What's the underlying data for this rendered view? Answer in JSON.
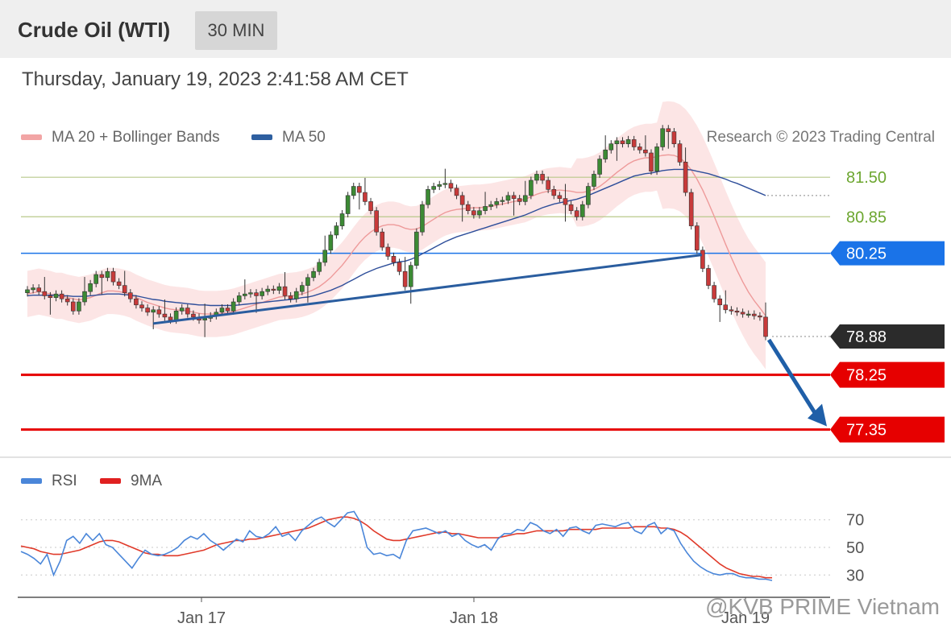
{
  "header": {
    "title": "Crude Oil (WTI)",
    "timeframe": "30 MIN"
  },
  "timestamp": "Thursday, January 19, 2023 2:41:58 AM CET",
  "legend": {
    "ma20": "MA 20 + Bollinger Bands",
    "ma50": "MA 50",
    "credit": "Research © 2023 Trading Central"
  },
  "rsi_legend": {
    "rsi": "RSI",
    "ma": "9MA"
  },
  "watermark": "@KVB PRIME Vietnam",
  "colors": {
    "up_candle": "#3c8a34",
    "down_candle": "#c83a3a",
    "bollinger": "#fbe1e1",
    "ma20": "#ee9a9a",
    "ma50": "#2e4e9a",
    "trendline": "#2a5d9f",
    "pivot": "#1a73e8",
    "support": "#e60000",
    "resistance": "#6ca62f",
    "last_price": "#2b2b2b",
    "rsi_line": "#4a86d9",
    "rsi_ma": "#e03a2a"
  },
  "chart_data": [
    {
      "type": "candlestick",
      "title": "Crude Oil (WTI)",
      "timeframe": "30 MIN",
      "x_ticks": [
        "Jan 17",
        "Jan 18",
        "Jan 19"
      ],
      "y_range": [
        77.0,
        81.9
      ],
      "levels": [
        {
          "value": 81.5,
          "label": "81.50",
          "kind": "resistance"
        },
        {
          "value": 80.85,
          "label": "80.85",
          "kind": "resistance"
        },
        {
          "value": 80.25,
          "label": "80.25",
          "kind": "pivot"
        },
        {
          "value": 78.88,
          "label": "78.88",
          "kind": "last"
        },
        {
          "value": 78.25,
          "label": "78.25",
          "kind": "support"
        },
        {
          "value": 77.35,
          "label": "77.35",
          "kind": "support"
        }
      ],
      "close": [
        79.65,
        79.68,
        79.62,
        79.55,
        79.52,
        79.58,
        79.5,
        79.45,
        79.3,
        79.45,
        79.62,
        79.75,
        79.9,
        79.85,
        79.95,
        79.78,
        79.72,
        79.6,
        79.5,
        79.4,
        79.35,
        79.28,
        79.32,
        79.25,
        79.2,
        79.15,
        79.3,
        79.35,
        79.25,
        79.2,
        79.15,
        79.18,
        79.22,
        79.28,
        79.35,
        79.3,
        79.45,
        79.55,
        79.58,
        79.6,
        79.55,
        79.62,
        79.66,
        79.64,
        79.7,
        79.55,
        79.5,
        79.62,
        79.72,
        79.85,
        79.95,
        80.1,
        80.3,
        80.55,
        80.7,
        80.9,
        81.2,
        81.35,
        81.25,
        81.1,
        80.95,
        80.6,
        80.35,
        80.2,
        80.1,
        79.95,
        79.7,
        80.05,
        80.6,
        81.05,
        81.3,
        81.35,
        81.38,
        81.4,
        81.32,
        81.2,
        81.05,
        80.95,
        80.88,
        80.95,
        81.02,
        81.05,
        81.1,
        81.12,
        81.2,
        81.15,
        81.1,
        81.2,
        81.45,
        81.55,
        81.45,
        81.3,
        81.2,
        81.15,
        81.05,
        80.95,
        80.85,
        81.05,
        81.35,
        81.55,
        81.8,
        81.95,
        82.05,
        82.1,
        82.05,
        82.12,
        82.0,
        81.95,
        81.9,
        81.6,
        82.0,
        82.3,
        82.25,
        82.05,
        81.75,
        81.25,
        80.7,
        80.3,
        80.0,
        79.72,
        79.5,
        79.4,
        79.32,
        79.3,
        79.28,
        79.25,
        79.25,
        79.22,
        79.2,
        78.88
      ],
      "ma20": [
        79.58,
        79.6,
        79.62,
        79.6,
        79.58,
        79.55,
        79.55,
        79.52,
        79.5,
        79.48,
        79.5,
        79.52,
        79.56,
        79.6,
        79.63,
        79.63,
        79.62,
        79.6,
        79.57,
        79.52,
        79.48,
        79.44,
        79.41,
        79.38,
        79.35,
        79.33,
        79.32,
        79.31,
        79.3,
        79.28,
        79.26,
        79.25,
        79.25,
        79.25,
        79.26,
        79.27,
        79.29,
        79.32,
        79.35,
        79.38,
        79.41,
        79.44,
        79.47,
        79.5,
        79.53,
        79.54,
        79.55,
        79.56,
        79.58,
        79.61,
        79.65,
        79.7,
        79.77,
        79.85,
        79.95,
        80.05,
        80.17,
        80.3,
        80.42,
        80.52,
        80.6,
        80.66,
        80.7,
        80.72,
        80.72,
        80.7,
        80.66,
        80.64,
        80.65,
        80.69,
        80.75,
        80.81,
        80.87,
        80.92,
        80.95,
        80.97,
        80.98,
        80.99,
        81.0,
        81.0,
        81.01,
        81.02,
        81.04,
        81.06,
        81.08,
        81.1,
        81.12,
        81.14,
        81.18,
        81.22,
        81.25,
        81.27,
        81.28,
        81.29,
        81.28,
        81.27,
        81.25,
        81.25,
        81.27,
        81.3,
        81.35,
        81.42,
        81.5,
        81.58,
        81.65,
        81.72,
        81.77,
        81.8,
        81.82,
        81.82,
        81.84,
        81.86,
        81.87,
        81.86,
        81.82,
        81.74,
        81.62,
        81.47,
        81.29,
        81.08,
        80.86,
        80.63,
        80.4,
        80.18,
        79.97,
        79.78,
        79.61,
        79.47,
        79.35,
        79.22
      ],
      "ma50": [
        79.55,
        79.56,
        79.56,
        79.56,
        79.56,
        79.56,
        79.55,
        79.55,
        79.54,
        79.54,
        79.54,
        79.55,
        79.56,
        79.57,
        79.58,
        79.58,
        79.58,
        79.57,
        79.56,
        79.55,
        79.53,
        79.51,
        79.49,
        79.48,
        79.46,
        79.45,
        79.44,
        79.43,
        79.42,
        79.41,
        79.4,
        79.4,
        79.39,
        79.39,
        79.39,
        79.39,
        79.39,
        79.4,
        79.41,
        79.42,
        79.43,
        79.44,
        79.45,
        79.46,
        79.47,
        79.48,
        79.49,
        79.5,
        79.52,
        79.53,
        79.55,
        79.58,
        79.61,
        79.64,
        79.68,
        79.72,
        79.77,
        79.82,
        79.87,
        79.92,
        79.96,
        80.0,
        80.03,
        80.06,
        80.09,
        80.11,
        80.12,
        80.15,
        80.19,
        80.24,
        80.29,
        80.34,
        80.39,
        80.44,
        80.48,
        80.52,
        80.55,
        80.58,
        80.61,
        80.64,
        80.67,
        80.7,
        80.73,
        80.76,
        80.79,
        80.82,
        80.85,
        80.88,
        80.92,
        80.96,
        81.0,
        81.03,
        81.06,
        81.08,
        81.1,
        81.12,
        81.14,
        81.17,
        81.2,
        81.24,
        81.28,
        81.32,
        81.36,
        81.4,
        81.44,
        81.48,
        81.52,
        81.54,
        81.56,
        81.57,
        81.59,
        81.61,
        81.62,
        81.63,
        81.63,
        81.63,
        81.62,
        81.6,
        81.58,
        81.56,
        81.53,
        81.5,
        81.47,
        81.43,
        81.4,
        81.36,
        81.32,
        81.28,
        81.24,
        81.2
      ]
    },
    {
      "type": "line",
      "title": "RSI",
      "y_ticks": [
        30,
        50,
        70
      ],
      "series": [
        {
          "name": "RSI",
          "values": [
            47,
            45,
            42,
            38,
            45,
            30,
            40,
            55,
            58,
            53,
            60,
            55,
            60,
            52,
            50,
            45,
            40,
            35,
            42,
            48,
            45,
            44,
            45,
            47,
            50,
            55,
            58,
            56,
            60,
            55,
            52,
            48,
            52,
            56,
            54,
            62,
            58,
            57,
            60,
            65,
            58,
            60,
            55,
            62,
            66,
            70,
            72,
            68,
            65,
            70,
            75,
            76,
            68,
            50,
            45,
            46,
            44,
            45,
            42,
            55,
            62,
            63,
            64,
            62,
            60,
            62,
            58,
            60,
            55,
            52,
            50,
            52,
            48,
            56,
            60,
            60,
            63,
            62,
            68,
            66,
            62,
            60,
            63,
            58,
            64,
            65,
            62,
            60,
            66,
            67,
            66,
            65,
            67,
            68,
            62,
            60,
            66,
            68,
            60,
            64,
            62,
            53,
            46,
            40,
            36,
            33,
            31,
            30,
            31,
            31,
            29,
            28,
            28,
            27,
            27,
            26
          ]
        },
        {
          "name": "9MA",
          "values": [
            51,
            50,
            49,
            47,
            46,
            45,
            45,
            46,
            47,
            48,
            50,
            52,
            54,
            55,
            55,
            54,
            52,
            50,
            48,
            46,
            45,
            45,
            44,
            44,
            44,
            45,
            46,
            47,
            48,
            50,
            52,
            53,
            54,
            55,
            55,
            56,
            56,
            57,
            58,
            59,
            60,
            61,
            62,
            63,
            64,
            66,
            68,
            70,
            71,
            72,
            72,
            71,
            69,
            66,
            62,
            59,
            56,
            55,
            55,
            56,
            57,
            58,
            59,
            60,
            61,
            61,
            60,
            60,
            59,
            58,
            57,
            57,
            57,
            57,
            58,
            59,
            60,
            60,
            61,
            62,
            62,
            62,
            62,
            62,
            63,
            63,
            63,
            63,
            63,
            64,
            64,
            64,
            64,
            64,
            65,
            65,
            65,
            65,
            64,
            64,
            63,
            61,
            58,
            54,
            50,
            46,
            42,
            38,
            35,
            33,
            31,
            30,
            29,
            29,
            28,
            28
          ]
        }
      ]
    }
  ]
}
